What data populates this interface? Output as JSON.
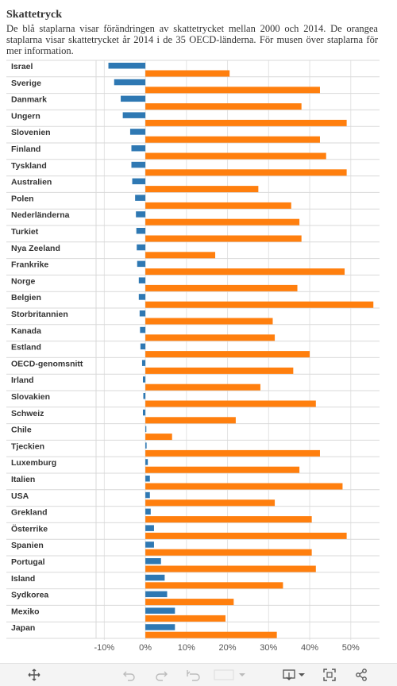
{
  "header": {
    "title": "Skattetryck",
    "description": "De blå staplarna visar förändringen av skattetrycket mellan 2000 och 2014. De orangea staplarna visar skattetrycket år 2014 i de 35 OECD-länderna. För musen över staplarna för mer information."
  },
  "colors": {
    "change": "#2e78b3",
    "level": "#ff7f0e",
    "grid": "#e3e3e3",
    "separator": "#d9d9d9",
    "label": "#333333"
  },
  "chart_data": {
    "type": "bar",
    "orientation": "horizontal",
    "title": "Skattetryck",
    "categories": [
      "Israel",
      "Sverige",
      "Danmark",
      "Ungern",
      "Slovenien",
      "Finland",
      "Tyskland",
      "Australien",
      "Polen",
      "Nederländerna",
      "Turkiet",
      "Nya Zeeland",
      "Frankrike",
      "Norge",
      "Belgien",
      "Storbritannien",
      "Kanada",
      "Estland",
      "OECD-genomsnitt",
      "Irland",
      "Slovakien",
      "Schweiz",
      "Chile",
      "Tjeckien",
      "Luxemburg",
      "Italien",
      "USA",
      "Grekland",
      "Österrike",
      "Spanien",
      "Portugal",
      "Island",
      "Sydkorea",
      "Mexiko",
      "Japan"
    ],
    "series": [
      {
        "name": "",
        "color": "#2e78b3",
        "values": [
          -9.0,
          -7.6,
          -6.0,
          -5.5,
          -3.7,
          -3.4,
          -3.4,
          -3.2,
          -2.5,
          -2.3,
          -2.2,
          -2.1,
          -2.0,
          -1.6,
          -1.6,
          -1.4,
          -1.3,
          -1.2,
          -0.8,
          -0.6,
          -0.5,
          -0.6,
          0.2,
          0.3,
          0.6,
          1.1,
          1.1,
          1.3,
          2.1,
          2.1,
          3.8,
          4.7,
          5.3,
          7.2,
          7.2
        ]
      },
      {
        "name": "",
        "color": "#ff7f0e",
        "values": [
          20.5,
          42.5,
          38.0,
          49.0,
          42.5,
          44.0,
          49.0,
          27.5,
          35.5,
          37.5,
          38.0,
          17.0,
          48.5,
          37.0,
          55.5,
          31.0,
          31.5,
          40.0,
          36.0,
          28.0,
          41.5,
          22.0,
          6.5,
          42.5,
          37.5,
          48.0,
          31.5,
          40.5,
          49.0,
          40.5,
          41.5,
          33.5,
          21.5,
          19.5,
          32.0
        ]
      }
    ],
    "x_ticks": [
      "-10%",
      "0%",
      "10%",
      "20%",
      "30%",
      "40%",
      "50%"
    ],
    "x_tick_values": [
      -10,
      0,
      10,
      20,
      30,
      40,
      50
    ],
    "xlim": [
      -12,
      57
    ],
    "grid": true
  },
  "toolbar": {
    "buttons": [
      "move-icon",
      "undo-icon",
      "redo-icon",
      "revert-icon",
      "dropdown-arrow-icon",
      "download-icon",
      "fullscreen-icon",
      "share-icon"
    ]
  }
}
